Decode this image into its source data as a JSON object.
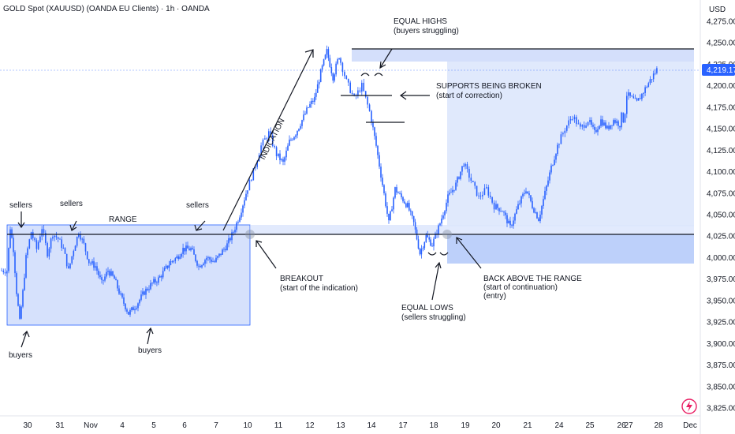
{
  "header": {
    "title": "GOLD Spot (XAUUSD) (OANDA EU Clients) · 1h · OANDA",
    "currency": "USD"
  },
  "colors": {
    "candle": "#2962ff",
    "zone_fill": "#cfdcfb",
    "zone_stroke": "#2962ff",
    "price_badge": "#2962ff",
    "logo": "#e91e63"
  },
  "last_price_label": "4,219.17",
  "chart_data": {
    "type": "candlestick",
    "symbol": "XAUUSD",
    "timeframe": "1h",
    "x_tick_labels": [
      "30",
      "31",
      "Nov",
      "4",
      "5",
      "6",
      "7",
      "10",
      "11",
      "12",
      "13",
      "14",
      "17",
      "18",
      "19",
      "20",
      "21",
      "24",
      "25",
      "26",
      "27",
      "28",
      "Dec"
    ],
    "y_tick_labels": [
      "4,275.00",
      "4,250.00",
      "4,225.00",
      "4,200.00",
      "4,175.00",
      "4,150.00",
      "4,125.00",
      "4,100.00",
      "4,075.00",
      "4,050.00",
      "4,025.00",
      "4,000.00",
      "3,975.00",
      "3,950.00",
      "3,925.00",
      "3,900.00",
      "3,875.00",
      "3,850.00",
      "3,825.00"
    ],
    "y_ticks": [
      4275,
      4250,
      4225,
      4200,
      4175,
      4150,
      4125,
      4100,
      4075,
      4050,
      4025,
      4000,
      3975,
      3950,
      3925,
      3900,
      3875,
      3850,
      3825
    ],
    "ylim": [
      3814,
      4283
    ],
    "last_price": 4219.17,
    "price_path": [
      [
        "30",
        3985
      ],
      [
        "30",
        4035
      ],
      [
        "30",
        4010
      ],
      [
        "30",
        3960
      ],
      [
        "30",
        3925
      ],
      [
        "30",
        3960
      ],
      [
        "30",
        4000
      ],
      [
        "31",
        4030
      ],
      [
        "31",
        4010
      ],
      [
        "31",
        4035
      ],
      [
        "31",
        4005
      ],
      [
        "31",
        4028
      ],
      [
        "31",
        4022
      ],
      [
        "Nov",
        4010
      ],
      [
        "Nov",
        3985
      ],
      [
        "Nov",
        4010
      ],
      [
        "Nov",
        4030
      ],
      [
        "Nov",
        4015
      ],
      [
        "Nov",
        3995
      ],
      [
        "4",
        3990
      ],
      [
        "4",
        3970
      ],
      [
        "4",
        3985
      ],
      [
        "4",
        3975
      ],
      [
        "4",
        3955
      ],
      [
        "5",
        3935
      ],
      [
        "5",
        3945
      ],
      [
        "5",
        3960
      ],
      [
        "5",
        3970
      ],
      [
        "6",
        3975
      ],
      [
        "6",
        3985
      ],
      [
        "6",
        3995
      ],
      [
        "6",
        4000
      ],
      [
        "6",
        4010
      ],
      [
        "7",
        4010
      ],
      [
        "7",
        3990
      ],
      [
        "7",
        4000
      ],
      [
        "7",
        3995
      ],
      [
        "10",
        4005
      ],
      [
        "10",
        4015
      ],
      [
        "10",
        4030
      ],
      [
        "10",
        4050
      ],
      [
        "10",
        4075
      ],
      [
        "11",
        4100
      ],
      [
        "11",
        4130
      ],
      [
        "11",
        4145
      ],
      [
        "11",
        4120
      ],
      [
        "12",
        4110
      ],
      [
        "12",
        4135
      ],
      [
        "12",
        4145
      ],
      [
        "12",
        4160
      ],
      [
        "12",
        4175
      ],
      [
        "13",
        4185
      ],
      [
        "13",
        4215
      ],
      [
        "13",
        4240
      ],
      [
        "13",
        4210
      ],
      [
        "13",
        4235
      ],
      [
        "14",
        4205
      ],
      [
        "14",
        4185
      ],
      [
        "14",
        4200
      ],
      [
        "14",
        4170
      ],
      [
        "17",
        4130
      ],
      [
        "17",
        4085
      ],
      [
        "17",
        4040
      ],
      [
        "17",
        4080
      ],
      [
        "17",
        4070
      ],
      [
        "18",
        4060
      ],
      [
        "18",
        4040
      ],
      [
        "18",
        4005
      ],
      [
        "18",
        4025
      ],
      [
        "18",
        4015
      ],
      [
        "19",
        4040
      ],
      [
        "19",
        4070
      ],
      [
        "19",
        4085
      ],
      [
        "19",
        4110
      ],
      [
        "20",
        4090
      ],
      [
        "20",
        4070
      ],
      [
        "20",
        4080
      ],
      [
        "20",
        4060
      ],
      [
        "21",
        4055
      ],
      [
        "21",
        4035
      ],
      [
        "21",
        4060
      ],
      [
        "21",
        4080
      ],
      [
        "24",
        4060
      ],
      [
        "24",
        4045
      ],
      [
        "24",
        4075
      ],
      [
        "24",
        4105
      ],
      [
        "24",
        4130
      ],
      [
        "25",
        4150
      ],
      [
        "25",
        4165
      ],
      [
        "25",
        4150
      ],
      [
        "25",
        4160
      ],
      [
        "26",
        4145
      ],
      [
        "26",
        4160
      ],
      [
        "26",
        4150
      ],
      [
        "26",
        4160
      ],
      [
        "26",
        4155
      ],
      [
        "27",
        4165
      ],
      [
        "27",
        4160
      ],
      [
        "27",
        4170
      ],
      [
        "27",
        4190
      ],
      [
        "28",
        4180
      ],
      [
        "28",
        4200
      ],
      [
        "28",
        4219
      ]
    ],
    "horizontal_levels": [
      {
        "name": "range-high-line",
        "value": 4027
      },
      {
        "name": "equal-highs-line",
        "value": 4242
      }
    ],
    "annotations": {
      "range_label": "RANGE",
      "sellers": "sellers",
      "buyers": "buyers",
      "indication": "INDICATION",
      "equal_highs": "EQUAL HIGHS",
      "equal_highs_sub": "(buyers struggling)",
      "supports_broken": "SUPPORTS BEING BROKEN",
      "supports_broken_sub": "(start of correction)",
      "breakout": "BREAKOUT",
      "breakout_sub": "(start of the indication)",
      "equal_lows": "EQUAL LOWS",
      "equal_lows_sub": "(sellers struggling)",
      "back_above": "BACK ABOVE THE RANGE",
      "back_above_sub1": "(start of continuation)",
      "back_above_sub2": "(entry)"
    }
  }
}
